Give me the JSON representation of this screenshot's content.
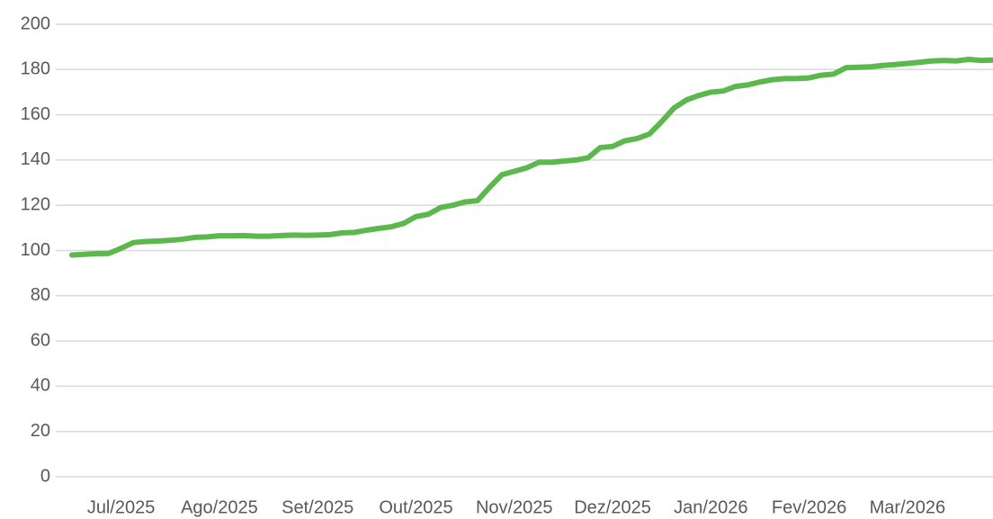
{
  "chart_data": {
    "type": "line",
    "categories": [
      null,
      null,
      null,
      null,
      "Jul/2025",
      null,
      null,
      null,
      null,
      null,
      null,
      null,
      "Ago/2025",
      null,
      null,
      null,
      null,
      null,
      null,
      null,
      "Set/2025",
      null,
      null,
      null,
      null,
      null,
      null,
      null,
      "Out/2025",
      null,
      null,
      null,
      null,
      null,
      null,
      null,
      "Nov/2025",
      null,
      null,
      null,
      null,
      null,
      null,
      null,
      "Dez/2025",
      null,
      null,
      null,
      null,
      null,
      null,
      null,
      "Jan/2026",
      null,
      null,
      null,
      null,
      null,
      null,
      null,
      "Fev/2026",
      null,
      null,
      null,
      null,
      null,
      null,
      null,
      "Mar/2026",
      null,
      null,
      null,
      null,
      null,
      null,
      null
    ],
    "values": [
      98,
      98.3,
      98.6,
      98.7,
      101,
      103.5,
      104,
      104.2,
      104.5,
      105,
      105.8,
      106,
      106.5,
      106.5,
      106.6,
      106.3,
      106.3,
      106.6,
      106.8,
      106.7,
      106.8,
      107,
      107.8,
      108,
      109,
      109.8,
      110.5,
      112,
      115,
      116,
      119,
      120,
      121.5,
      122,
      128,
      133.5,
      135,
      136.5,
      139,
      139,
      139.5,
      140,
      141,
      145.5,
      146,
      148.5,
      149.5,
      151.5,
      157,
      163,
      166.5,
      168.5,
      170,
      170.5,
      172.5,
      173.2,
      174.5,
      175.5,
      176,
      176,
      176.3,
      177.5,
      178,
      180.8,
      181,
      181.2,
      181.8,
      182.2,
      182.7,
      183.2,
      183.8,
      184,
      183.8,
      184.5,
      184,
      184.2
    ],
    "color": "#5cb84c",
    "ylim": [
      0,
      200
    ],
    "yticks": [
      0,
      20,
      40,
      60,
      80,
      100,
      120,
      140,
      160,
      180,
      200
    ],
    "grid": true
  }
}
